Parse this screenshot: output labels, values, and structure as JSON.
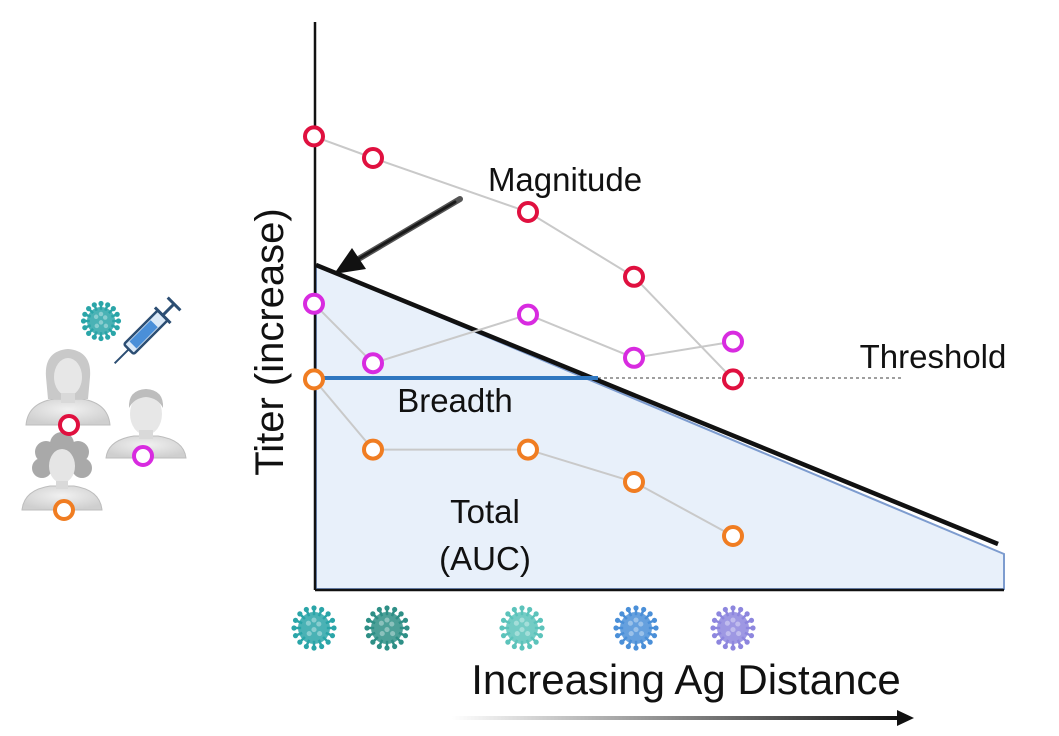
{
  "labels": {
    "magnitude": "Magnitude",
    "threshold": "Threshold",
    "breadth": "Breadth",
    "total_line1": "Total",
    "total_line2": "(AUC)",
    "y_axis": "Titer  (increase)",
    "x_axis": "Increasing Ag Distance"
  },
  "colors": {
    "red": "#e0103f",
    "magenta": "#d82be0",
    "orange": "#f07d22",
    "connector": "#c9c9c9",
    "region_fill": "#e8f0fa",
    "region_edge": "#7d9ccf",
    "breadth_line": "#2f77c0",
    "axis": "#111111",
    "virus_colors": [
      "#2aa5a8",
      "#2e8f86",
      "#5cc3bb",
      "#4a8fd8",
      "#8d86de"
    ]
  },
  "icons": {
    "vaccine": [
      "virus-icon",
      "syringe-icon"
    ],
    "people": [
      "woman-portrait-icon",
      "man-portrait-icon",
      "curly-hair-woman-portrait-icon"
    ],
    "antigen_row": [
      "virus-icon",
      "virus-icon",
      "virus-icon",
      "virus-icon",
      "virus-icon"
    ]
  },
  "series": [
    {
      "color_key": "red",
      "antigen_titers": [
        {
          "antigen": 0,
          "level": 0.84
        },
        {
          "antigen": 1,
          "level": 0.8
        },
        {
          "antigen": 2,
          "level": 0.7
        },
        {
          "antigen": 3,
          "level": 0.58
        },
        {
          "antigen": 4,
          "level": 0.39
        }
      ]
    },
    {
      "color_key": "magenta",
      "antigen_titers": [
        {
          "antigen": 0,
          "level": 0.53
        },
        {
          "antigen": 1,
          "level": 0.42
        },
        {
          "antigen": 2,
          "level": 0.51
        },
        {
          "antigen": 3,
          "level": 0.43
        },
        {
          "antigen": 4,
          "level": 0.46
        }
      ]
    },
    {
      "color_key": "orange",
      "antigen_titers": [
        {
          "antigen": 0,
          "level": 0.39
        },
        {
          "antigen": 1,
          "level": 0.26
        },
        {
          "antigen": 2,
          "level": 0.26
        },
        {
          "antigen": 3,
          "level": 0.2
        },
        {
          "antigen": 4,
          "level": 0.1
        }
      ]
    }
  ]
}
